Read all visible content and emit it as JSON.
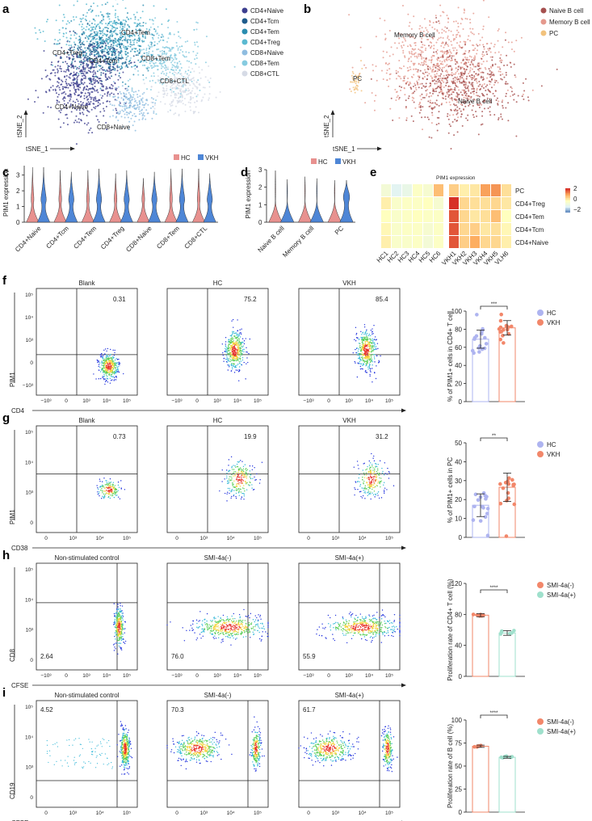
{
  "panel_labels": [
    "a",
    "b",
    "c",
    "d",
    "e",
    "f",
    "g",
    "h",
    "i"
  ],
  "chart_data": [
    {
      "panel": "a",
      "type": "scatter",
      "xlabel": "tSNE_1",
      "ylabel": "tSNE_2",
      "legend": [
        {
          "name": "CD4+Naive",
          "color": "#3d3f8f"
        },
        {
          "name": "CD4+Tcm",
          "color": "#1f5c8c"
        },
        {
          "name": "CD4+Tem",
          "color": "#2a8db0"
        },
        {
          "name": "CD4+Treg",
          "color": "#5bbad1"
        },
        {
          "name": "CD8+Naive",
          "color": "#8fbde0"
        },
        {
          "name": "CD8+Tem",
          "color": "#86cbe0"
        },
        {
          "name": "CD8+CTL",
          "color": "#d6dbe6"
        }
      ],
      "cluster_labels": [
        "CD4+Treg",
        "CD4+Tem",
        "CD4+Tcm",
        "CD8+Tem",
        "CD8+CTL",
        "CD4+Naive",
        "CD8+Naive"
      ]
    },
    {
      "panel": "b",
      "type": "scatter",
      "xlabel": "tSNE_1",
      "ylabel": "tSNE_2",
      "legend": [
        {
          "name": "Naive B cell",
          "color": "#a6504f"
        },
        {
          "name": "Memory B cell",
          "color": "#e59a8e"
        },
        {
          "name": "PC",
          "color": "#f2c27d"
        }
      ],
      "cluster_labels": [
        "Memory B cell",
        "PC",
        "Naive B cell"
      ]
    },
    {
      "panel": "c",
      "type": "violin",
      "ylabel": "PIM1 expression",
      "categories": [
        "CD4+Naive",
        "CD4+Tcm",
        "CD4+Tem",
        "CD4+Treg",
        "CD8+Naive",
        "CD8+Tem",
        "CD8+CTL"
      ],
      "series": [
        {
          "name": "HC",
          "color": "#e8918f",
          "max": [
            3.5,
            3.3,
            3.3,
            3.1,
            2.8,
            3.4,
            3.4
          ]
        },
        {
          "name": "VKH",
          "color": "#4e86d6",
          "max": [
            3.5,
            3.2,
            3.4,
            3.3,
            3.2,
            3.4,
            3.1
          ]
        }
      ],
      "yticks": [
        "0",
        "1",
        "2",
        "3"
      ],
      "ylim": [
        0,
        3.6
      ]
    },
    {
      "panel": "d",
      "type": "violin",
      "ylabel": "PIM1 expression",
      "categories": [
        "Naive B cell",
        "Memory B cell",
        "PC"
      ],
      "series": [
        {
          "name": "HC",
          "color": "#e8918f",
          "max": [
            2.95,
            2.6,
            2.4
          ]
        },
        {
          "name": "VKH",
          "color": "#4e86d6",
          "max": [
            2.45,
            2.5,
            2.4
          ]
        }
      ],
      "yticks": [
        "0",
        "1",
        "2",
        "3"
      ],
      "ylim": [
        0,
        3
      ]
    },
    {
      "panel": "e",
      "type": "heatmap",
      "title": "PIM1 expression",
      "columns": [
        "HC1",
        "HC2",
        "HC3",
        "HC4",
        "HC5",
        "HC6",
        "VKH1",
        "VKH2",
        "VKH3",
        "VKH4",
        "VKH5",
        "VLH6"
      ],
      "rows": [
        "PC",
        "CD4+Treg",
        "CD4+Tem",
        "CD4+Tcm",
        "CD4+Naive"
      ],
      "values": [
        [
          -0.4,
          -0.9,
          -0.7,
          -0.1,
          -0.3,
          0.8,
          0.6,
          0.2,
          0.3,
          1.1,
          1.2,
          0.4
        ],
        [
          0.2,
          -0.2,
          -0.1,
          -0.1,
          0,
          -0.3,
          2,
          0.5,
          0.4,
          0.4,
          0.5,
          0.3
        ],
        [
          0,
          -0.2,
          -0.1,
          0,
          -0.1,
          -0.1,
          1.7,
          0.5,
          0.3,
          0.4,
          0.8,
          0
        ],
        [
          0.1,
          -0.2,
          -0.1,
          -0.1,
          -0.3,
          -0.1,
          1.7,
          0.5,
          0.6,
          0.3,
          0.4,
          0.1
        ],
        [
          0.2,
          -0.2,
          -0.2,
          -0.1,
          -0.4,
          -0.1,
          1.7,
          0.6,
          1,
          0.5,
          0.5,
          0.2
        ]
      ],
      "colorbar_ticks": [
        "2",
        "0",
        "−2"
      ],
      "vmin": -2,
      "vmax": 2
    },
    {
      "panel": "f",
      "type": "bar",
      "ylabel": "% of PIM1+ cells in CD4+ T cell",
      "categories": [
        "HC",
        "VKH"
      ],
      "values": [
        69,
        81.5
      ],
      "sd": [
        10,
        8
      ],
      "colors": [
        "#aeb4f0",
        "#f2876a"
      ],
      "ylim": [
        0,
        100
      ],
      "yticks": [
        "0",
        "20",
        "40",
        "60",
        "80",
        "100"
      ],
      "significance": "***"
    },
    {
      "panel": "g",
      "type": "bar",
      "ylabel": "% of PIM1+ cells in PC",
      "categories": [
        "HC",
        "VKH"
      ],
      "values": [
        17,
        26.5
      ],
      "sd": [
        6,
        7.5
      ],
      "colors": [
        "#aeb4f0",
        "#f2876a"
      ],
      "ylim": [
        0,
        50
      ],
      "yticks": [
        "0",
        "10",
        "20",
        "30",
        "40",
        "50"
      ],
      "significance": "**"
    },
    {
      "panel": "h",
      "type": "bar",
      "ylabel": "Proliferation rate of CD4+ T cell (%)",
      "categories": [
        "SMI-4a(-)",
        "SMI-4a(+)"
      ],
      "values": [
        79,
        56
      ],
      "sd": [
        2,
        3
      ],
      "colors": [
        "#f2876a",
        "#9fe0cc"
      ],
      "ylim": [
        0,
        120
      ],
      "yticks": [
        "0",
        "40",
        "80",
        "120"
      ],
      "significance": "****"
    },
    {
      "panel": "i",
      "type": "bar",
      "ylabel": "Proliferation rate of B cell (%)",
      "categories": [
        "SMI-4a(-)",
        "SMI-4a(+)"
      ],
      "values": [
        71.5,
        59.5
      ],
      "sd": [
        1.2,
        1
      ],
      "colors": [
        "#f2876a",
        "#9fe0cc"
      ],
      "ylim": [
        0,
        100
      ],
      "yticks": [
        "0",
        "25",
        "50",
        "75",
        "100"
      ],
      "significance": "****"
    }
  ],
  "flow": [
    {
      "panel": "f",
      "xlabel": "CD4",
      "ylabel": "PIM1",
      "titles": [
        "Blank",
        "HC",
        "VKH"
      ],
      "values": [
        "0.31",
        "75.2",
        "85.4"
      ],
      "xticks": [
        "−10³",
        "0",
        "10³",
        "10⁴",
        "10⁵"
      ],
      "yticks": [
        "10⁵",
        "10⁴",
        "10³",
        "0",
        "−10³"
      ]
    },
    {
      "panel": "g",
      "xlabel": "CD38",
      "ylabel": "PIM1",
      "titles": [
        "Blank",
        "HC",
        "VKH"
      ],
      "values": [
        "0.73",
        "19.9",
        "31.2"
      ],
      "xticks": [
        "0",
        "10³",
        "10⁴",
        "10⁵"
      ],
      "yticks": [
        "10⁵",
        "10⁴",
        "10³",
        "0"
      ]
    },
    {
      "panel": "h",
      "xlabel": "CFSE",
      "ylabel": "CD8",
      "titles": [
        "Non-stimulated control",
        "SMI-4a(-)",
        "SMI-4a(+)"
      ],
      "values": [
        "2.64",
        "76.0",
        "55.9"
      ],
      "xticks": [
        "−10³",
        "0",
        "10³",
        "10⁴",
        "10⁵"
      ],
      "yticks": [
        "10⁵",
        "10⁴",
        "10³",
        "0"
      ]
    },
    {
      "panel": "i",
      "xlabel": "CFSE",
      "ylabel": "CD19",
      "titles": [
        "Non-stimulated control",
        "SMI-4a(-)",
        "SMI-4a(+)"
      ],
      "values": [
        "4.52",
        "70.3",
        "61.7"
      ],
      "xticks": [
        "0",
        "10³",
        "10⁴",
        "10⁵"
      ],
      "yticks": [
        "10⁵",
        "10⁴",
        "10³",
        "0"
      ]
    }
  ]
}
